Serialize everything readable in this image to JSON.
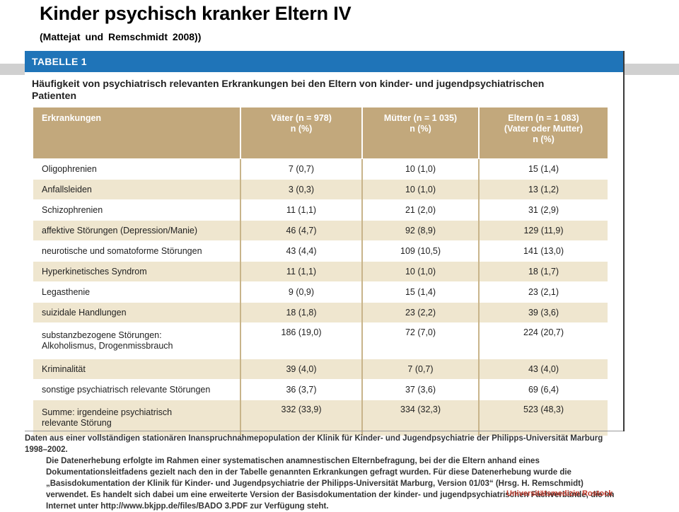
{
  "slide": {
    "title": "Kinder psychisch kranker Eltern IV",
    "subtitle": "(Mattejat und Remschmidt 2008))"
  },
  "table": {
    "label": "TABELLE 1",
    "caption": "Häufigkeit von psychiatrisch relevanten Erkrankungen bei den Eltern von kinder- und jugendpsychiatrischen Patienten",
    "columns": [
      "Erkrankungen",
      "Väter (n = 978)\nn (%)",
      "Mütter (n = 1 035)\nn (%)",
      "Eltern (n = 1 083)\n(Vater oder Mutter)\nn (%)"
    ],
    "rows": [
      [
        "Oligophrenien",
        "7 (0,7)",
        "10 (1,0)",
        "15 (1,4)"
      ],
      [
        "Anfallsleiden",
        "3 (0,3)",
        "10 (1,0)",
        "13 (1,2)"
      ],
      [
        "Schizophrenien",
        "11 (1,1)",
        "21 (2,0)",
        "31 (2,9)"
      ],
      [
        "affektive Störungen (Depression/Manie)",
        "46 (4,7)",
        "92 (8,9)",
        "129 (11,9)"
      ],
      [
        "neurotische und somatoforme Störungen",
        "43 (4,4)",
        "109 (10,5)",
        "141 (13,0)"
      ],
      [
        "Hyperkinetisches Syndrom",
        "11 (1,1)",
        "10 (1,0)",
        "18 (1,7)"
      ],
      [
        "Legasthenie",
        "9 (0,9)",
        "15 (1,4)",
        "23 (2,1)"
      ],
      [
        "suizidale Handlungen",
        "18 (1,8)",
        "23 (2,2)",
        "39 (3,6)"
      ],
      [
        "substanzbezogene Störungen:\nAlkoholismus, Drogenmissbrauch",
        "186 (19,0)",
        "72 (7,0)",
        "224 (20,7)"
      ],
      [
        "Kriminalität",
        "39 (4,0)",
        "7 (0,7)",
        "43 (4,0)"
      ],
      [
        "sonstige psychiatrisch relevante Störungen",
        "36 (3,7)",
        "37 (3,6)",
        "69 (6,4)"
      ],
      [
        "Summe: irgendeine psychiatrisch\nrelevante Störung",
        "332 (33,9)",
        "334 (32,3)",
        "523 (48,3)"
      ]
    ],
    "footnote_first": "Daten aus einer vollständigen stationären Inanspruchnahmepopulation der Klinik für Kinder- und Jugendpsychiatrie der Philipps-Universität Marburg 1998–2002.",
    "footnote_rest": "Die Datenerhebung erfolgte im Rahmen einer systematischen anamnestischen Elternbefragung, bei der die Eltern anhand eines Dokumentationsleitfadens gezielt nach den in der Tabelle genannten Erkrankungen gefragt wurden. Für diese Datenerhebung wurde die „Basisdokumentation der Klinik für Kinder- und Jugendpsychiatrie der Philipps-Universität Marburg, Version 01/03“ (Hrsg. H. Remschmidt) verwendet. Es handelt sich dabei um eine erweiterte Version der Basisdokumentation der kinder- und jugendpsychiatrischen Fachverbände, die im Internet unter http://www.bkjpp.de/files/BADO 3.PDF zur Verfügung steht."
  },
  "footer": {
    "institution": "Universitätsmedizin Rostock"
  },
  "colors": {
    "header_blue": "#1f74b8",
    "header_tan": "#c2a87c",
    "row_shade": "#efe6cf",
    "institution_red": "#c0392b"
  }
}
